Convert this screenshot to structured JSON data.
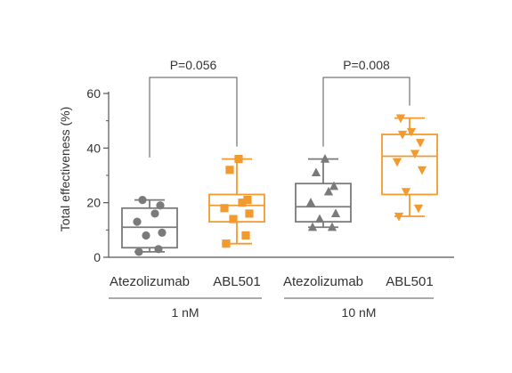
{
  "chart_data": {
    "type": "box",
    "ylabel": "Total effectiveness (%)",
    "ylim": [
      0,
      60
    ],
    "yticks": [
      0,
      20,
      40,
      60
    ],
    "groups": [
      {
        "label": "1 nM",
        "boxes": [
          {
            "category": "Atezolizumab",
            "color": "#7a7a7a",
            "marker": "circle",
            "min": 2,
            "q1": 3.5,
            "median": 11,
            "q3": 18,
            "max": 21,
            "points": [
              2,
              3,
              8,
              9,
              13,
              16,
              19,
              21
            ]
          },
          {
            "category": "ABL501",
            "color": "#f39a2e",
            "marker": "square",
            "min": 5,
            "q1": 13,
            "median": 19,
            "q3": 23,
            "max": 36,
            "points": [
              5,
              8,
              14,
              16,
              18,
              20,
              21,
              32,
              36
            ]
          }
        ],
        "comparison": "P=0.056"
      },
      {
        "label": "10 nM",
        "boxes": [
          {
            "category": "Atezolizumab",
            "color": "#7a7a7a",
            "marker": "triangle-up",
            "min": 11,
            "q1": 13,
            "median": 18.5,
            "q3": 27,
            "max": 36,
            "points": [
              11,
              11,
              14,
              16,
              20,
              24,
              26,
              31,
              36
            ]
          },
          {
            "category": "ABL501",
            "color": "#f39a2e",
            "marker": "triangle-down",
            "min": 15,
            "q1": 23,
            "median": 37,
            "q3": 45,
            "max": 51,
            "points": [
              15,
              18,
              24,
              32,
              35,
              38,
              42,
              45,
              46,
              51
            ]
          }
        ],
        "comparison": "P=0.008"
      }
    ]
  }
}
